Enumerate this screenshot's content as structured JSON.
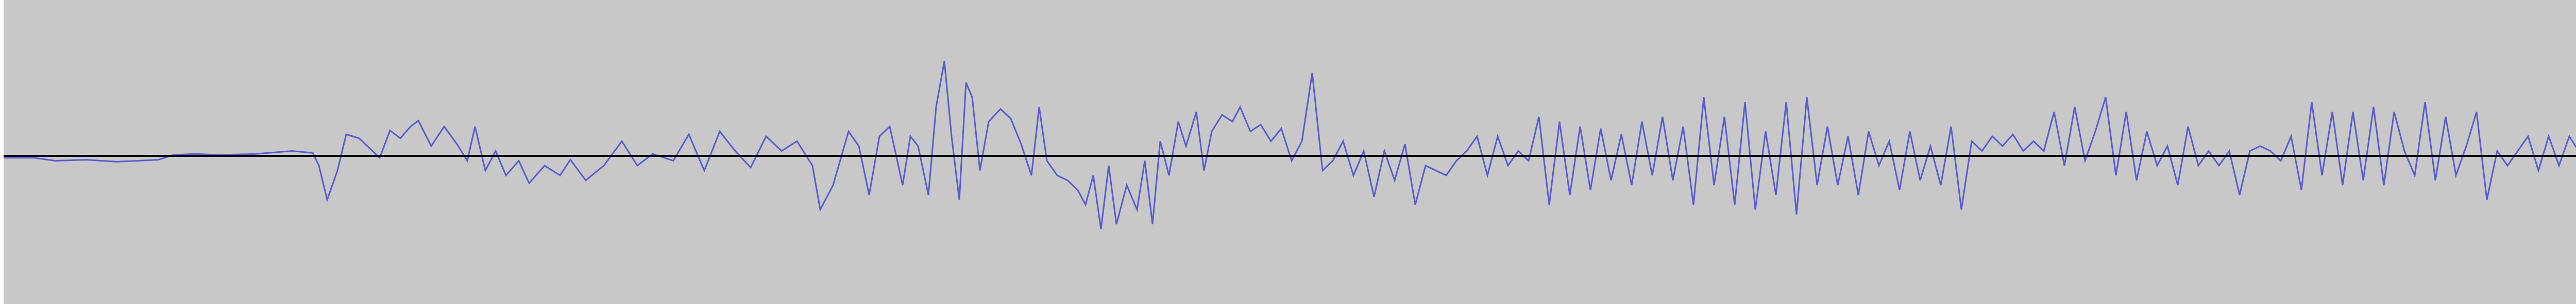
{
  "colors": {
    "track_background": "#c8c8c8",
    "left_border": "#ffffff",
    "waveform": "#5a5ad2",
    "zero_line": "#000000"
  },
  "track": {
    "waveform_anchors": [
      [
        0,
        -0.02
      ],
      [
        60,
        -0.02
      ],
      [
        100,
        -0.05
      ],
      [
        160,
        -0.04
      ],
      [
        220,
        -0.06
      ],
      [
        300,
        -0.04
      ],
      [
        330,
        0.01
      ],
      [
        370,
        0.02
      ],
      [
        420,
        0.01
      ],
      [
        490,
        0.02
      ],
      [
        560,
        0.05
      ],
      [
        600,
        0.03
      ],
      [
        612,
        -0.1
      ],
      [
        628,
        -0.45
      ],
      [
        648,
        -0.15
      ],
      [
        665,
        0.22
      ],
      [
        690,
        0.18
      ],
      [
        710,
        0.08
      ],
      [
        730,
        -0.02
      ],
      [
        750,
        0.26
      ],
      [
        770,
        0.18
      ],
      [
        790,
        0.3
      ],
      [
        805,
        0.36
      ],
      [
        830,
        0.1
      ],
      [
        855,
        0.3
      ],
      [
        880,
        0.12
      ],
      [
        900,
        -0.05
      ],
      [
        915,
        0.3
      ],
      [
        935,
        -0.15
      ],
      [
        955,
        0.05
      ],
      [
        975,
        -0.2
      ],
      [
        1000,
        -0.05
      ],
      [
        1020,
        -0.28
      ],
      [
        1050,
        -0.1
      ],
      [
        1080,
        -0.2
      ],
      [
        1100,
        -0.04
      ],
      [
        1130,
        -0.25
      ],
      [
        1165,
        -0.1
      ],
      [
        1200,
        0.15
      ],
      [
        1230,
        -0.1
      ],
      [
        1260,
        0.02
      ],
      [
        1300,
        -0.05
      ],
      [
        1330,
        0.22
      ],
      [
        1360,
        -0.15
      ],
      [
        1390,
        0.25
      ],
      [
        1420,
        0.05
      ],
      [
        1450,
        -0.12
      ],
      [
        1480,
        0.2
      ],
      [
        1510,
        0.05
      ],
      [
        1540,
        0.15
      ],
      [
        1570,
        -0.1
      ],
      [
        1585,
        -0.55
      ],
      [
        1610,
        -0.3
      ],
      [
        1640,
        0.25
      ],
      [
        1660,
        0.1
      ],
      [
        1680,
        -0.4
      ],
      [
        1700,
        0.2
      ],
      [
        1720,
        0.3
      ],
      [
        1745,
        -0.3
      ],
      [
        1760,
        0.2
      ],
      [
        1775,
        0.1
      ],
      [
        1795,
        -0.4
      ],
      [
        1810,
        0.5
      ],
      [
        1826,
        0.97
      ],
      [
        1840,
        0.2
      ],
      [
        1855,
        -0.45
      ],
      [
        1868,
        0.75
      ],
      [
        1880,
        0.6
      ],
      [
        1895,
        -0.15
      ],
      [
        1912,
        0.35
      ],
      [
        1935,
        0.48
      ],
      [
        1955,
        0.38
      ],
      [
        1975,
        0.12
      ],
      [
        1995,
        -0.2
      ],
      [
        2010,
        0.5
      ],
      [
        2025,
        -0.05
      ],
      [
        2045,
        -0.2
      ],
      [
        2065,
        -0.25
      ],
      [
        2085,
        -0.35
      ],
      [
        2100,
        -0.5
      ],
      [
        2115,
        -0.2
      ],
      [
        2130,
        -0.75
      ],
      [
        2145,
        -0.1
      ],
      [
        2160,
        -0.7
      ],
      [
        2180,
        -0.3
      ],
      [
        2200,
        -0.55
      ],
      [
        2215,
        -0.05
      ],
      [
        2230,
        -0.7
      ],
      [
        2245,
        0.15
      ],
      [
        2262,
        -0.2
      ],
      [
        2280,
        0.35
      ],
      [
        2295,
        0.1
      ],
      [
        2315,
        0.45
      ],
      [
        2330,
        -0.15
      ],
      [
        2345,
        0.25
      ],
      [
        2365,
        0.42
      ],
      [
        2385,
        0.35
      ],
      [
        2400,
        0.5
      ],
      [
        2420,
        0.25
      ],
      [
        2440,
        0.32
      ],
      [
        2460,
        0.15
      ],
      [
        2480,
        0.28
      ],
      [
        2500,
        -0.05
      ],
      [
        2520,
        0.15
      ],
      [
        2540,
        0.85
      ],
      [
        2560,
        -0.15
      ],
      [
        2580,
        -0.05
      ],
      [
        2600,
        0.15
      ],
      [
        2620,
        -0.2
      ],
      [
        2640,
        0.05
      ],
      [
        2660,
        -0.42
      ],
      [
        2680,
        0.05
      ],
      [
        2700,
        -0.25
      ],
      [
        2720,
        0.12
      ],
      [
        2740,
        -0.5
      ],
      [
        2760,
        -0.1
      ],
      [
        2780,
        -0.15
      ],
      [
        2800,
        -0.2
      ],
      [
        2820,
        -0.05
      ],
      [
        2840,
        0.05
      ],
      [
        2860,
        0.2
      ],
      [
        2880,
        -0.2
      ],
      [
        2900,
        0.2
      ],
      [
        2920,
        -0.1
      ],
      [
        2940,
        0.05
      ],
      [
        2960,
        -0.05
      ],
      [
        2980,
        0.4
      ],
      [
        3000,
        -0.5
      ],
      [
        3020,
        0.35
      ],
      [
        3040,
        -0.4
      ],
      [
        3060,
        0.3
      ],
      [
        3080,
        -0.35
      ],
      [
        3100,
        0.28
      ],
      [
        3120,
        -0.25
      ],
      [
        3140,
        0.22
      ],
      [
        3160,
        -0.3
      ],
      [
        3180,
        0.35
      ],
      [
        3200,
        -0.2
      ],
      [
        3220,
        0.4
      ],
      [
        3240,
        -0.25
      ],
      [
        3260,
        0.3
      ],
      [
        3280,
        -0.5
      ],
      [
        3300,
        0.6
      ],
      [
        3320,
        -0.3
      ],
      [
        3340,
        0.4
      ],
      [
        3360,
        -0.5
      ],
      [
        3380,
        0.55
      ],
      [
        3400,
        -0.55
      ],
      [
        3420,
        0.25
      ],
      [
        3440,
        -0.4
      ],
      [
        3460,
        0.55
      ],
      [
        3480,
        -0.6
      ],
      [
        3500,
        0.6
      ],
      [
        3520,
        -0.3
      ],
      [
        3540,
        0.3
      ],
      [
        3560,
        -0.3
      ],
      [
        3580,
        0.2
      ],
      [
        3600,
        -0.4
      ],
      [
        3620,
        0.25
      ],
      [
        3640,
        -0.1
      ],
      [
        3660,
        0.15
      ],
      [
        3680,
        -0.35
      ],
      [
        3700,
        0.25
      ],
      [
        3720,
        -0.25
      ],
      [
        3740,
        0.1
      ],
      [
        3760,
        -0.3
      ],
      [
        3780,
        0.3
      ],
      [
        3800,
        -0.55
      ],
      [
        3820,
        0.15
      ],
      [
        3840,
        0.05
      ],
      [
        3860,
        0.2
      ],
      [
        3880,
        0.1
      ],
      [
        3900,
        0.22
      ],
      [
        3920,
        0.05
      ],
      [
        3940,
        0.15
      ],
      [
        3960,
        0.05
      ],
      [
        3980,
        0.45
      ],
      [
        4000,
        -0.1
      ],
      [
        4020,
        0.5
      ],
      [
        4040,
        -0.05
      ],
      [
        4060,
        0.25
      ],
      [
        4080,
        0.6
      ],
      [
        4100,
        -0.2
      ],
      [
        4120,
        0.45
      ],
      [
        4140,
        -0.25
      ],
      [
        4160,
        0.25
      ],
      [
        4180,
        -0.1
      ],
      [
        4200,
        0.1
      ],
      [
        4220,
        -0.3
      ],
      [
        4240,
        0.3
      ],
      [
        4260,
        -0.1
      ],
      [
        4280,
        0.05
      ],
      [
        4300,
        -0.1
      ],
      [
        4320,
        0.05
      ],
      [
        4340,
        -0.4
      ],
      [
        4360,
        0.05
      ],
      [
        4380,
        0.1
      ],
      [
        4400,
        0.05
      ],
      [
        4420,
        -0.05
      ],
      [
        4440,
        0.2
      ],
      [
        4460,
        -0.35
      ],
      [
        4480,
        0.55
      ],
      [
        4500,
        -0.2
      ],
      [
        4520,
        0.45
      ],
      [
        4540,
        -0.3
      ],
      [
        4560,
        0.45
      ],
      [
        4580,
        -0.25
      ],
      [
        4600,
        0.5
      ],
      [
        4620,
        -0.3
      ],
      [
        4640,
        0.45
      ],
      [
        4660,
        0.05
      ],
      [
        4680,
        -0.2
      ],
      [
        4700,
        0.55
      ],
      [
        4720,
        -0.25
      ],
      [
        4740,
        0.4
      ],
      [
        4760,
        -0.2
      ],
      [
        4780,
        0.1
      ],
      [
        4800,
        0.45
      ],
      [
        4820,
        -0.45
      ],
      [
        4840,
        0.05
      ],
      [
        4860,
        -0.1
      ],
      [
        4880,
        0.05
      ],
      [
        4900,
        0.2
      ],
      [
        4920,
        -0.15
      ],
      [
        4940,
        0.2
      ],
      [
        4960,
        -0.1
      ],
      [
        4980,
        0.2
      ],
      [
        5004,
        0.0
      ]
    ]
  }
}
